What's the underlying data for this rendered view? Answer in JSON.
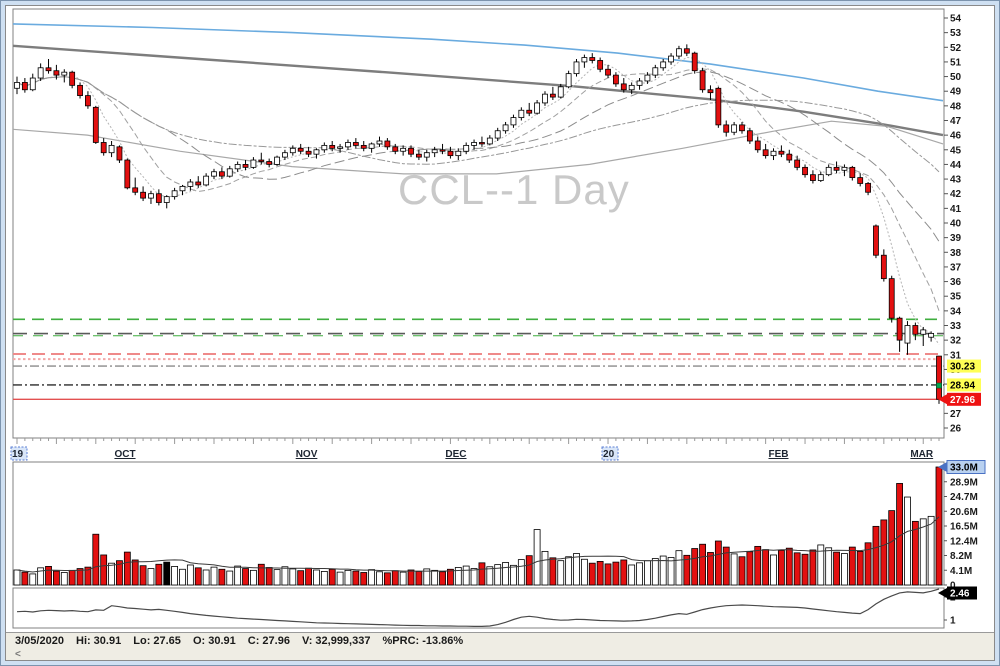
{
  "watermark": "CCL--1 Day",
  "status_bar": {
    "date": "3/05/2020",
    "hi_label": "Hi:",
    "hi": "30.91",
    "lo_label": "Lo:",
    "lo": "27.65",
    "open_label": "O:",
    "open": "30.91",
    "close_label": "C:",
    "close": "27.96",
    "volume_label": "V:",
    "volume": "32,999,337",
    "prc_label": "%PRC:",
    "prc": "-13.86%",
    "scroll_left_glyph": "<"
  },
  "chart_data": {
    "type": "candlestick",
    "title": "CCL--1 Day",
    "price_axis": {
      "min": 26,
      "max": 54,
      "step": 1
    },
    "x_axis_labels": [
      {
        "text": "19",
        "bar": 0,
        "selected": true
      },
      {
        "text": "OCT",
        "bar": 13
      },
      {
        "text": "NOV",
        "bar": 36
      },
      {
        "text": "DEC",
        "bar": 55
      },
      {
        "text": "20",
        "bar": 75,
        "selected": true
      },
      {
        "text": "FEB",
        "bar": 96
      },
      {
        "text": "MAR",
        "bar": 114
      }
    ],
    "candles": [
      [
        49.2,
        50,
        48.8,
        49.6
      ],
      [
        49.6,
        49.9,
        48.9,
        49.1
      ],
      [
        49.1,
        50.2,
        49,
        49.9
      ],
      [
        49.9,
        50.9,
        49.7,
        50.6
      ],
      [
        50.6,
        51.2,
        50.2,
        50.4
      ],
      [
        50.4,
        50.8,
        49.8,
        50.1
      ],
      [
        50.1,
        50.5,
        49.6,
        50.3
      ],
      [
        50.3,
        50.4,
        49.2,
        49.4
      ],
      [
        49.4,
        49.6,
        48.5,
        48.7
      ],
      [
        48.7,
        49,
        47.8,
        48
      ],
      [
        47.9,
        48,
        45.4,
        45.5
      ],
      [
        45.5,
        45.8,
        44.6,
        44.8
      ],
      [
        44.8,
        45.6,
        44.5,
        45.3
      ],
      [
        45.2,
        45.3,
        44.1,
        44.3
      ],
      [
        44.3,
        44.4,
        42.3,
        42.4
      ],
      [
        42.4,
        43.1,
        41.9,
        42.1
      ],
      [
        42.1,
        42.5,
        41.5,
        41.7
      ],
      [
        41.7,
        42.2,
        41.3,
        42
      ],
      [
        42,
        42.3,
        41.2,
        41.4
      ],
      [
        41.4,
        41.9,
        41,
        41.8
      ],
      [
        41.8,
        42.4,
        41.6,
        42.2
      ],
      [
        42.2,
        42.6,
        41.9,
        42.5
      ],
      [
        42.5,
        43,
        42.2,
        42.8
      ],
      [
        42.8,
        43.2,
        42.4,
        42.6
      ],
      [
        42.6,
        43.4,
        42.5,
        43.2
      ],
      [
        43.2,
        43.7,
        43,
        43.5
      ],
      [
        43.5,
        43.8,
        43,
        43.2
      ],
      [
        43.2,
        43.9,
        43.1,
        43.7
      ],
      [
        43.7,
        44.2,
        43.5,
        44
      ],
      [
        44,
        44.3,
        43.6,
        43.8
      ],
      [
        43.8,
        44.5,
        43.7,
        44.3
      ],
      [
        44.3,
        44.8,
        44,
        44.2
      ],
      [
        44.2,
        44.4,
        43.8,
        44
      ],
      [
        44,
        44.6,
        43.9,
        44.5
      ],
      [
        44.5,
        45,
        44.3,
        44.8
      ],
      [
        44.8,
        45.3,
        44.6,
        45.1
      ],
      [
        45.1,
        45.4,
        44.7,
        44.9
      ],
      [
        44.9,
        45.2,
        44.5,
        44.7
      ],
      [
        44.7,
        45.1,
        44.4,
        45
      ],
      [
        45,
        45.5,
        44.8,
        45.3
      ],
      [
        45.3,
        45.6,
        44.9,
        45.1
      ],
      [
        45.1,
        45.4,
        44.8,
        45.2
      ],
      [
        45.2,
        45.7,
        45,
        45.5
      ],
      [
        45.5,
        45.8,
        45.1,
        45.3
      ],
      [
        45.3,
        45.6,
        44.9,
        45.1
      ],
      [
        45.1,
        45.5,
        44.8,
        45.4
      ],
      [
        45.4,
        45.9,
        45.2,
        45.6
      ],
      [
        45.6,
        45.8,
        45,
        45.2
      ],
      [
        45.2,
        45.4,
        44.7,
        44.9
      ],
      [
        44.9,
        45.3,
        44.6,
        45.1
      ],
      [
        45.1,
        45.3,
        44.5,
        44.7
      ],
      [
        44.7,
        45,
        44.3,
        44.5
      ],
      [
        44.5,
        45,
        44.2,
        44.8
      ],
      [
        44.8,
        45.2,
        44.5,
        45
      ],
      [
        45,
        45.4,
        44.7,
        44.9
      ],
      [
        44.9,
        45.2,
        44.4,
        44.6
      ],
      [
        44.6,
        45.1,
        44.3,
        44.9
      ],
      [
        44.9,
        45.5,
        44.7,
        45.3
      ],
      [
        45.3,
        45.7,
        45,
        45.5
      ],
      [
        45.5,
        45.9,
        45.2,
        45.4
      ],
      [
        45.4,
        46,
        45.3,
        45.8
      ],
      [
        45.8,
        46.5,
        45.6,
        46.3
      ],
      [
        46.3,
        46.9,
        46.1,
        46.7
      ],
      [
        46.7,
        47.4,
        46.5,
        47.2
      ],
      [
        47.2,
        47.9,
        47,
        47.7
      ],
      [
        47.7,
        48.2,
        47.3,
        47.5
      ],
      [
        47.5,
        48.4,
        47.4,
        48.2
      ],
      [
        48.2,
        49,
        48,
        48.8
      ],
      [
        48.8,
        49.3,
        48.4,
        48.6
      ],
      [
        48.6,
        49.5,
        48.5,
        49.3
      ],
      [
        49.3,
        50.4,
        49.2,
        50.2
      ],
      [
        50.2,
        51.2,
        50,
        51
      ],
      [
        51,
        51.5,
        50.6,
        51.3
      ],
      [
        51.3,
        51.6,
        50.9,
        51.1
      ],
      [
        51.1,
        51.3,
        50.3,
        50.5
      ],
      [
        50.5,
        50.8,
        49.9,
        50.1
      ],
      [
        50.1,
        50.3,
        49.3,
        49.5
      ],
      [
        49.5,
        49.9,
        48.9,
        49.1
      ],
      [
        49.1,
        49.6,
        48.8,
        49.4
      ],
      [
        49.4,
        49.9,
        49.1,
        49.7
      ],
      [
        49.7,
        50.3,
        49.5,
        50.1
      ],
      [
        50.1,
        50.8,
        49.9,
        50.6
      ],
      [
        50.6,
        51.2,
        50.4,
        51
      ],
      [
        51,
        51.6,
        50.8,
        51.4
      ],
      [
        51.4,
        52.1,
        51.2,
        51.9
      ],
      [
        51.9,
        52.2,
        51.4,
        51.6
      ],
      [
        51.6,
        51.7,
        50.2,
        50.4
      ],
      [
        50.4,
        50.6,
        48.9,
        49.1
      ],
      [
        49.1,
        49.4,
        48.4,
        48.9
      ],
      [
        49.2,
        49.3,
        46.5,
        46.7
      ],
      [
        46.7,
        47,
        45.9,
        46.2
      ],
      [
        46.2,
        46.9,
        46,
        46.7
      ],
      [
        46.7,
        46.9,
        46.1,
        46.3
      ],
      [
        46.3,
        46.5,
        45.4,
        45.6
      ],
      [
        45.6,
        45.9,
        44.8,
        45
      ],
      [
        45,
        45.4,
        44.4,
        44.6
      ],
      [
        44.6,
        45.1,
        44.3,
        44.9
      ],
      [
        44.9,
        45.3,
        44.5,
        44.7
      ],
      [
        44.7,
        45,
        44.1,
        44.3
      ],
      [
        44.3,
        44.6,
        43.6,
        43.8
      ],
      [
        43.8,
        44,
        43.1,
        43.3
      ],
      [
        43.3,
        43.6,
        42.7,
        42.9
      ],
      [
        42.9,
        43.5,
        42.8,
        43.3
      ],
      [
        43.3,
        44,
        43.2,
        43.8
      ],
      [
        43.8,
        44.2,
        43.4,
        43.6
      ],
      [
        43.6,
        44,
        43.2,
        43.8
      ],
      [
        43.8,
        43.9,
        42.9,
        43.1
      ],
      [
        43.1,
        43.4,
        42.5,
        42.7
      ],
      [
        42.7,
        42.8,
        41.9,
        42.1
      ],
      [
        39.8,
        39.9,
        37.6,
        37.8
      ],
      [
        37.8,
        38.2,
        36,
        36.2
      ],
      [
        36.2,
        36.4,
        33.2,
        33.5
      ],
      [
        33.5,
        33.6,
        31.2,
        32
      ],
      [
        31.8,
        33.3,
        31,
        33
      ],
      [
        33,
        33.2,
        32,
        32.4
      ],
      [
        32.4,
        32.9,
        31.6,
        32.7
      ],
      [
        32.2,
        32.6,
        31.9,
        32.46
      ],
      [
        30.91,
        30.91,
        27.65,
        27.96
      ]
    ],
    "volume_millions": [
      4.2,
      3.6,
      3.1,
      4.8,
      5.2,
      3.9,
      3.5,
      4.1,
      4.6,
      5.0,
      14.2,
      8.4,
      6.1,
      6.8,
      9.2,
      7.0,
      5.4,
      4.6,
      5.8,
      6.4,
      5.2,
      4.4,
      5.6,
      4.8,
      4.2,
      5.0,
      4.4,
      3.9,
      5.3,
      4.6,
      4.1,
      5.8,
      4.9,
      4.3,
      5.1,
      4.5,
      4.0,
      4.7,
      4.2,
      3.8,
      4.4,
      3.6,
      4.1,
      3.9,
      3.5,
      4.3,
      3.7,
      3.4,
      4.0,
      3.6,
      4.2,
      3.8,
      4.5,
      4.1,
      3.7,
      4.4,
      4.9,
      5.3,
      4.6,
      6.2,
      5.1,
      5.7,
      6.3,
      5.5,
      7.1,
      8.2,
      15.5,
      9.4,
      7.6,
      6.8,
      7.9,
      8.8,
      7.2,
      6.1,
      6.6,
      5.9,
      6.4,
      7.0,
      5.6,
      6.2,
      6.8,
      7.4,
      8.1,
      7.7,
      9.6,
      8.3,
      10.2,
      11.4,
      9.1,
      12.3,
      10.6,
      8.7,
      7.9,
      9.3,
      10.8,
      9.9,
      8.4,
      9.7,
      10.3,
      9.0,
      8.6,
      9.8,
      11.2,
      10.4,
      9.2,
      8.8,
      10.6,
      9.4,
      11.8,
      16.4,
      18.2,
      20.8,
      28.4,
      24.6,
      17.8,
      18.5,
      19.2,
      33.0
    ],
    "black_volume_bars": [
      19
    ],
    "volume_axis_labels": [
      "33.0M",
      "28.9M",
      "24.7M",
      "20.6M",
      "16.5M",
      "12.4M",
      "8.2M",
      "4.1M",
      "0"
    ],
    "volume_current_label": "33.0M",
    "indicator": {
      "values": [
        1.36,
        1.38,
        1.35,
        1.4,
        1.42,
        1.41,
        1.39,
        1.41,
        1.38,
        1.36,
        1.44,
        1.42,
        1.62,
        1.58,
        1.52,
        1.5,
        1.47,
        1.44,
        1.46,
        1.42,
        1.38,
        1.33,
        1.28,
        1.24,
        1.2,
        1.17,
        1.14,
        1.11,
        1.08,
        1.06,
        1.04,
        1.02,
        1.0,
        0.98,
        0.96,
        0.94,
        0.92,
        0.9,
        0.88,
        0.87,
        0.86,
        0.85,
        0.84,
        0.83,
        0.82,
        0.81,
        0.8,
        0.79,
        0.78,
        0.77,
        0.76,
        0.76,
        0.75,
        0.75,
        0.74,
        0.74,
        0.73,
        0.73,
        0.72,
        0.72,
        0.74,
        0.8,
        0.9,
        1.02,
        1.12,
        1.16,
        1.12,
        1.06,
        1.02,
        0.99,
        1.0,
        1.03,
        1.02,
        1.0,
        0.98,
        0.97,
        0.96,
        0.95,
        0.96,
        0.98,
        1.02,
        1.08,
        1.15,
        1.22,
        1.28,
        1.25,
        1.35,
        1.45,
        1.52,
        1.58,
        1.62,
        1.64,
        1.65,
        1.64,
        1.62,
        1.6,
        1.58,
        1.57,
        1.56,
        1.55,
        1.52,
        1.48,
        1.44,
        1.4,
        1.36,
        1.33,
        1.3,
        1.28,
        1.45,
        1.7,
        1.9,
        2.05,
        2.18,
        2.22,
        2.2,
        2.18,
        2.25,
        2.46
      ],
      "ticks": [
        "2",
        "1"
      ],
      "current_label": "2.46"
    },
    "h_lines": [
      {
        "price": 33.42,
        "color": "#3fae3f",
        "dash": "12 7",
        "width": 1.6
      },
      {
        "price": 32.45,
        "color": "#5a5a5a",
        "dash": "14 7",
        "width": 1.6
      },
      {
        "price": 32.3,
        "color": "#3fae3f",
        "dash": "10 10",
        "width": 1.1
      },
      {
        "price": 31.05,
        "color": "#ef8a8a",
        "dash": "13 6",
        "width": 2
      },
      {
        "price": 30.7,
        "color": "#f2a8a8",
        "dash": "2.5 2.5",
        "width": 2
      },
      {
        "price": 30.23,
        "color": "#8a8a8a",
        "dash": "9 3 2 3",
        "width": 1.4,
        "label": {
          "text": "30.23",
          "bg": "#ffff55",
          "fg": "#000000"
        }
      },
      {
        "price": 28.94,
        "color": "#2a2a2a",
        "dash": "9 3 2 3",
        "width": 1.4,
        "label": {
          "text": "28.94",
          "bg": "#ffff55",
          "fg": "#000000"
        }
      },
      {
        "price": 27.96,
        "color": "#e35050",
        "dash": "",
        "width": 1.4,
        "label": {
          "text": "27.96",
          "bg": "#ee1212",
          "fg": "#ffffff",
          "arrow": true
        }
      }
    ],
    "overlays": {
      "blue_line": [
        [
          0,
          53.6
        ],
        [
          0.15,
          53.35
        ],
        [
          0.3,
          53.0
        ],
        [
          0.45,
          52.55
        ],
        [
          0.55,
          52.15
        ],
        [
          0.65,
          51.6
        ],
        [
          0.75,
          50.85
        ],
        [
          0.85,
          49.9
        ],
        [
          0.93,
          49.0
        ],
        [
          1,
          48.35
        ]
      ],
      "ma200": [
        [
          0,
          52.1
        ],
        [
          0.2,
          51.2
        ],
        [
          0.4,
          50.3
        ],
        [
          0.6,
          49.35
        ],
        [
          0.75,
          48.45
        ],
        [
          0.85,
          47.6
        ],
        [
          0.93,
          46.8
        ],
        [
          1,
          46.0
        ]
      ],
      "ma100": [
        [
          0,
          46.4
        ],
        [
          0.08,
          46.0
        ],
        [
          0.18,
          44.9
        ],
        [
          0.3,
          43.85
        ],
        [
          0.42,
          43.35
        ],
        [
          0.52,
          43.35
        ],
        [
          0.62,
          44.0
        ],
        [
          0.72,
          45.1
        ],
        [
          0.82,
          46.3
        ],
        [
          0.88,
          46.95
        ],
        [
          0.94,
          46.6
        ],
        [
          1,
          45.4
        ]
      ]
    },
    "colors": {
      "up": "#ffffff",
      "down": "#e31010",
      "wick": "#000000",
      "blue_line": "#6aabdf",
      "ma200": "#7d7d7d",
      "ma100": "#a8a8a8",
      "ribbon": "#9a9a9a",
      "volume_ma": "#3a3a3a",
      "watermark": "#c9c9c9",
      "vol_highlight_bg": "#b9d1f0",
      "vol_highlight_border": "#4a72c4",
      "selected_label_bg": "#d9e6f8",
      "selected_label_border": "#5b7fd4"
    },
    "last_trade_marker": {
      "price": 28.9,
      "color": "#00a550"
    }
  }
}
